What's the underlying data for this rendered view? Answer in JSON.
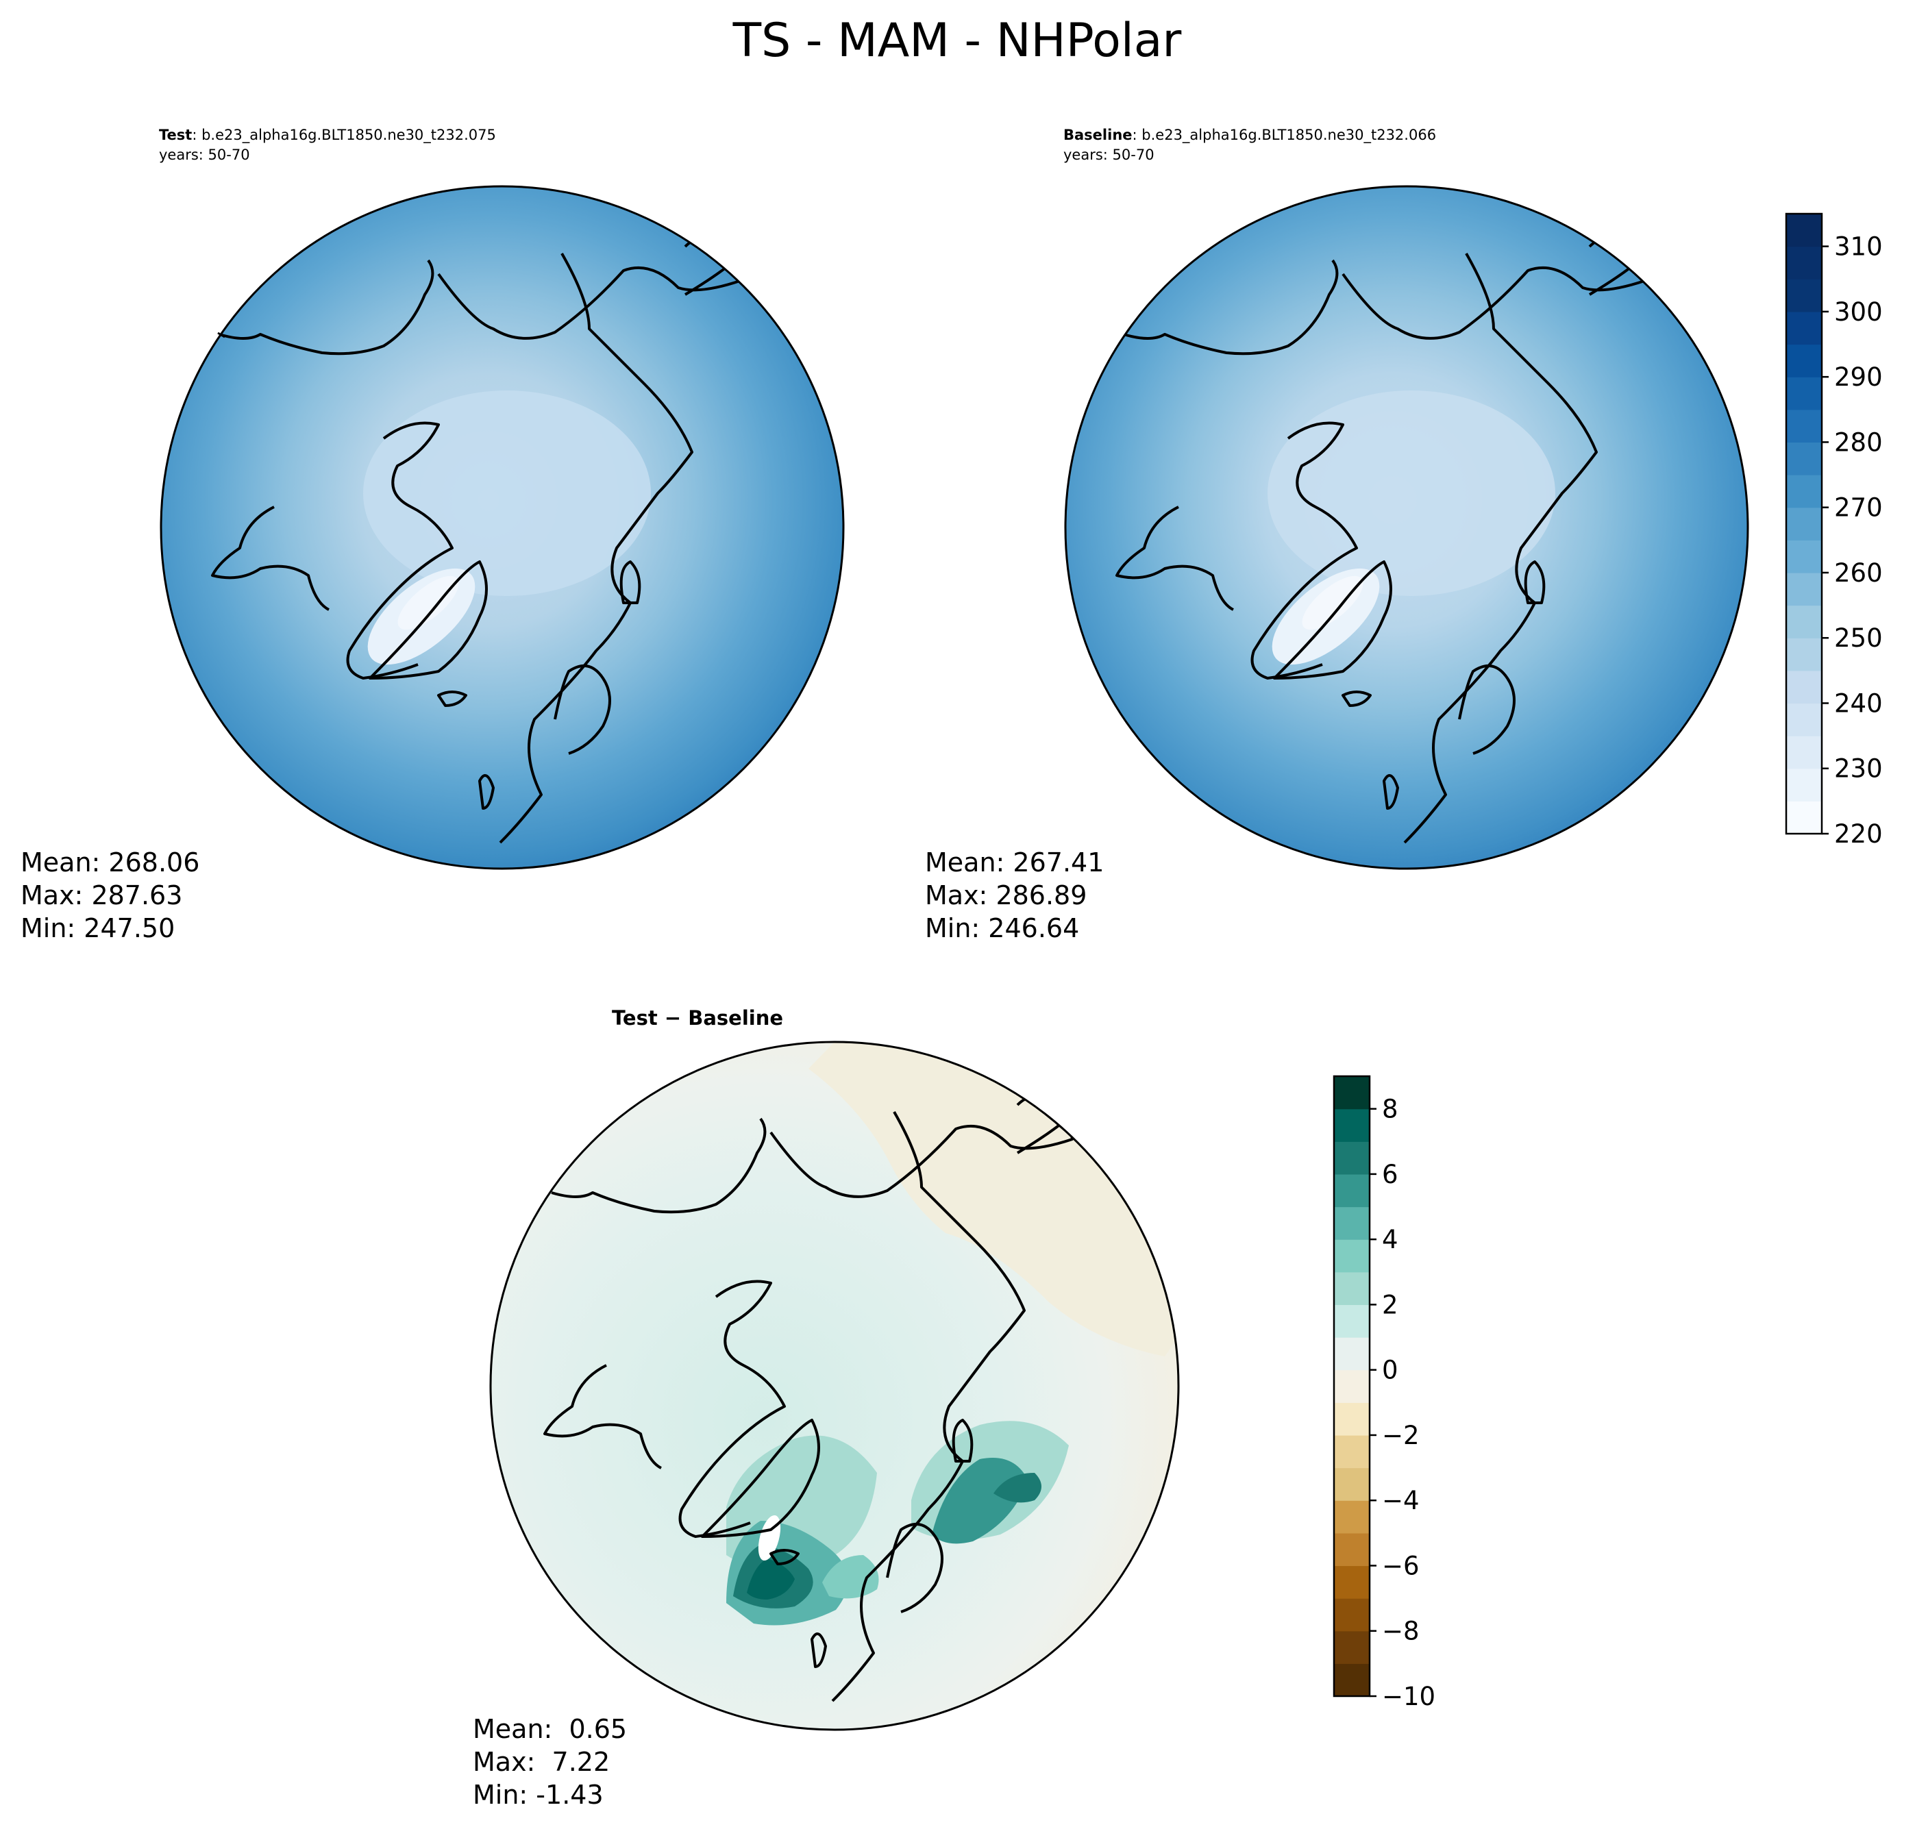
{
  "figure": {
    "title": "TS - MAM - NHPolar"
  },
  "chart_data": [
    {
      "type": "heatmap",
      "panel": "test",
      "title_bold": "Test",
      "title_sep": ": ",
      "title_text": "b.e23_alpha16g.BLT1850.ne30_t232.075",
      "subtitle": "years: 50-70",
      "stats": [
        "Mean: 268.06",
        "Max: 287.63",
        "Min: 247.50"
      ],
      "colormap": "Blues",
      "range": [
        220,
        315
      ]
    },
    {
      "type": "heatmap",
      "panel": "baseline",
      "title_bold": "Baseline",
      "title_sep": ": ",
      "title_text": "b.e23_alpha16g.BLT1850.ne30_t232.066",
      "subtitle": "years: 50-70",
      "stats": [
        "Mean: 267.41",
        "Max: 286.89",
        "Min: 246.64"
      ],
      "colormap": "Blues",
      "range": [
        220,
        315
      ]
    },
    {
      "type": "heatmap",
      "panel": "difference",
      "title_bold": "Test − Baseline",
      "stats": [
        "Mean:  0.65",
        "Max:  7.22",
        "Min: -1.43"
      ],
      "colormap": "BrBG",
      "range": [
        -10,
        9
      ]
    }
  ],
  "colorbars": {
    "abs": {
      "ticks": [
        "220",
        "230",
        "240",
        "250",
        "260",
        "270",
        "280",
        "290",
        "300",
        "310"
      ],
      "tick_values": [
        220,
        230,
        240,
        250,
        260,
        270,
        280,
        290,
        300,
        310
      ],
      "vmin": 220,
      "vmax": 315,
      "step": 5,
      "colors": [
        "#f7fbff",
        "#eaf3fb",
        "#deebf7",
        "#d1e3f3",
        "#c6dbef",
        "#b0d2e7",
        "#9ecae1",
        "#85bcdc",
        "#6baed6",
        "#58a1ce",
        "#4292c6",
        "#3282be",
        "#2171b5",
        "#1361a9",
        "#08519c",
        "#08428a",
        "#083673",
        "#08306b",
        "#082a60"
      ]
    },
    "diff": {
      "ticks": [
        "−10",
        "−8",
        "−6",
        "−4",
        "−2",
        "0",
        "2",
        "4",
        "6",
        "8"
      ],
      "tick_values": [
        -10,
        -8,
        -6,
        -4,
        -2,
        0,
        2,
        4,
        6,
        8
      ],
      "vmin": -10,
      "vmax": 9,
      "step": 1,
      "colors": [
        "#543005",
        "#6f3f09",
        "#8c510a",
        "#a6640f",
        "#bf812d",
        "#cf9b47",
        "#dfc27d",
        "#ead196",
        "#f6e8c3",
        "#f5f0e3",
        "#e8f1ef",
        "#c7eae5",
        "#a3d9cf",
        "#80cdc1",
        "#5ab4ac",
        "#35978f",
        "#1b7a72",
        "#01665e",
        "#003c30"
      ]
    }
  },
  "map_colors": {
    "coast": "#000000",
    "ocean_abs_outer": "#2f7fbf",
    "ice_abs": "#c3ddef",
    "greenland_core": "#e8f2fb"
  }
}
